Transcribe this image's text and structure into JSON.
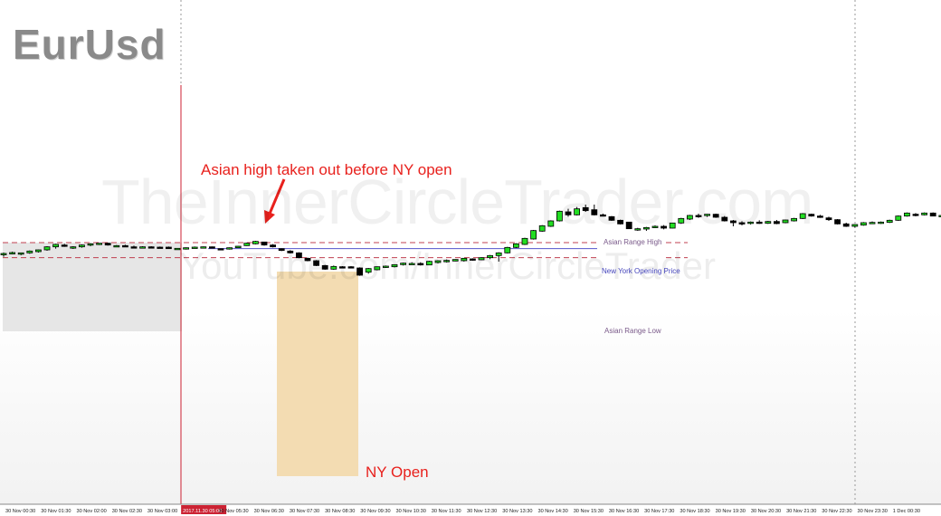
{
  "symbol_title": "EurUsd",
  "watermark": {
    "line1": "TheInnerCircleTrader.com",
    "line2": "YouTube.com/InnerCircleTrader"
  },
  "annotations": {
    "asian_high_note": "Asian high taken out before NY open",
    "ny_open_note": "NY Open"
  },
  "colors": {
    "bull_candle": "#22dd22",
    "bear_candle": "#000000",
    "asian_range_line": "#c04050",
    "ny_open_line": "#5555cc",
    "asian_session_box": "#e6e6e6",
    "ny_open_box": "#f3dcb2",
    "annotation_text": "#e8211d",
    "separator_line": "#cc2233"
  },
  "chart_data": {
    "type": "candlestick",
    "title": "EurUsd",
    "levels": [
      {
        "name": "Asian Range High",
        "value": 1.1918
      },
      {
        "name": "New York Opening Price",
        "value": 1.1898
      },
      {
        "name": "Asian Range Low",
        "value": 1.1868
      }
    ],
    "x_tick_labels": [
      "30 Nov 00:30",
      "30 Nov 01:30",
      "30 Nov 02:00",
      "30 Nov 02:30",
      "30 Nov 03:00",
      "2017.11.30 05:00",
      "30 Nov 05:30",
      "30 Nov 06:30",
      "30 Nov 07:30",
      "30 Nov 08:30",
      "30 Nov 09:30",
      "30 Nov 10:30",
      "30 Nov 11:30",
      "30 Nov 12:30",
      "30 Nov 13:30",
      "30 Nov 14:30",
      "30 Nov 15:30",
      "30 Nov 16:30",
      "30 Nov 17:30",
      "30 Nov 18:30",
      "30 Nov 19:30",
      "30 Nov 20:30",
      "30 Nov 21:30",
      "30 Nov 22:30",
      "30 Nov 23:30",
      "1 Dec 00:30"
    ],
    "highlighted_tick": "2017.11.30 05:00",
    "ohlc": [
      [
        1.1878,
        1.1885,
        1.1871,
        1.1882
      ],
      [
        1.1882,
        1.1888,
        1.1879,
        1.1885
      ],
      [
        1.188,
        1.1885,
        1.1876,
        1.1884
      ],
      [
        1.1884,
        1.1892,
        1.1881,
        1.189
      ],
      [
        1.1888,
        1.1895,
        1.1885,
        1.1894
      ],
      [
        1.1894,
        1.1906,
        1.1891,
        1.1904
      ],
      [
        1.1904,
        1.1914,
        1.1898,
        1.1912
      ],
      [
        1.191,
        1.1914,
        1.1904,
        1.1906
      ],
      [
        1.1902,
        1.1906,
        1.1897,
        1.1904
      ],
      [
        1.1904,
        1.1912,
        1.1901,
        1.191
      ],
      [
        1.191,
        1.1916,
        1.1906,
        1.1914
      ],
      [
        1.1912,
        1.1916,
        1.191,
        1.1916
      ],
      [
        1.1916,
        1.1918,
        1.1908,
        1.191
      ],
      [
        1.1908,
        1.191,
        1.1905,
        1.1908
      ],
      [
        1.1908,
        1.1911,
        1.1903,
        1.1906
      ],
      [
        1.1904,
        1.1908,
        1.19,
        1.1902
      ],
      [
        1.1902,
        1.1906,
        1.1899,
        1.1904
      ],
      [
        1.1904,
        1.1906,
        1.1901,
        1.1903
      ],
      [
        1.1903,
        1.1905,
        1.1899,
        1.1902
      ],
      [
        1.1903,
        1.1905,
        1.1898,
        1.1898
      ],
      [
        1.1898,
        1.19,
        1.1896,
        1.1899
      ],
      [
        1.1897,
        1.1902,
        1.1895,
        1.1901
      ],
      [
        1.1901,
        1.1905,
        1.19,
        1.1903
      ],
      [
        1.1903,
        1.1905,
        1.1901,
        1.1904
      ],
      [
        1.1904,
        1.1905,
        1.19,
        1.1902
      ],
      [
        1.1898,
        1.1899,
        1.1893,
        1.1895
      ],
      [
        1.1898,
        1.1902,
        1.1895,
        1.1901
      ],
      [
        1.1901,
        1.1907,
        1.19,
        1.1906
      ],
      [
        1.1908,
        1.1918,
        1.1907,
        1.1916
      ],
      [
        1.1914,
        1.1924,
        1.1912,
        1.1922
      ],
      [
        1.192,
        1.1921,
        1.1908,
        1.191
      ],
      [
        1.191,
        1.1913,
        1.1902,
        1.1904
      ],
      [
        1.1898,
        1.1899,
        1.189,
        1.1892
      ],
      [
        1.189,
        1.1893,
        1.1882,
        1.1884
      ],
      [
        1.1884,
        1.1886,
        1.1866,
        1.1868
      ],
      [
        1.1866,
        1.1868,
        1.1856,
        1.1858
      ],
      [
        1.1858,
        1.186,
        1.184,
        1.1842
      ],
      [
        1.1842,
        1.1844,
        1.1828,
        1.183
      ],
      [
        1.183,
        1.1842,
        1.1828,
        1.1839
      ],
      [
        1.1838,
        1.184,
        1.1835,
        1.1837
      ],
      [
        1.1838,
        1.184,
        1.1834,
        1.1836
      ],
      [
        1.1834,
        1.1836,
        1.1808,
        1.181
      ],
      [
        1.182,
        1.1834,
        1.1815,
        1.1832
      ],
      [
        1.1828,
        1.1839,
        1.1826,
        1.1838
      ],
      [
        1.1836,
        1.1842,
        1.1834,
        1.184
      ],
      [
        1.1838,
        1.1846,
        1.1836,
        1.1845
      ],
      [
        1.1845,
        1.1852,
        1.1842,
        1.185
      ],
      [
        1.1848,
        1.1853,
        1.1845,
        1.1849
      ],
      [
        1.1849,
        1.1853,
        1.1842,
        1.1844
      ],
      [
        1.1844,
        1.1858,
        1.1843,
        1.1856
      ],
      [
        1.1852,
        1.186,
        1.1849,
        1.1858
      ],
      [
        1.1856,
        1.1862,
        1.1852,
        1.1859
      ],
      [
        1.1857,
        1.1863,
        1.1856,
        1.1862
      ],
      [
        1.1858,
        1.1867,
        1.1855,
        1.1866
      ],
      [
        1.1864,
        1.1866,
        1.1858,
        1.186
      ],
      [
        1.1861,
        1.187,
        1.186,
        1.1868
      ],
      [
        1.1868,
        1.1877,
        1.1863,
        1.1875
      ],
      [
        1.1875,
        1.1886,
        1.1855,
        1.1884
      ],
      [
        1.1884,
        1.1904,
        1.1882,
        1.1902
      ],
      [
        1.1902,
        1.1916,
        1.19,
        1.1914
      ],
      [
        1.1912,
        1.1934,
        1.191,
        1.1932
      ],
      [
        1.193,
        1.196,
        1.1928,
        1.1958
      ],
      [
        1.1956,
        1.1976,
        1.1954,
        1.1974
      ],
      [
        1.1972,
        1.1992,
        1.197,
        1.199
      ],
      [
        1.199,
        1.2024,
        1.1988,
        1.2022
      ],
      [
        1.202,
        1.203,
        1.2004,
        1.201
      ],
      [
        1.201,
        1.2036,
        1.2008,
        1.203
      ],
      [
        1.2034,
        1.2044,
        1.202,
        1.2024
      ],
      [
        1.2027,
        1.2044,
        1.2008,
        1.201
      ],
      [
        1.201,
        1.2014,
        1.2006,
        1.2008
      ],
      [
        1.2004,
        1.2006,
        1.199,
        1.1992
      ],
      [
        1.1992,
        1.1994,
        1.1978,
        1.198
      ],
      [
        1.1986,
        1.1987,
        1.1963,
        1.1964
      ],
      [
        1.1964,
        1.1967,
        1.1957,
        1.1964
      ],
      [
        1.1963,
        1.197,
        1.1957,
        1.1968
      ],
      [
        1.1968,
        1.1975,
        1.1966,
        1.1972
      ],
      [
        1.1972,
        1.1976,
        1.1962,
        1.1966
      ],
      [
        1.1966,
        1.1984,
        1.1965,
        1.1983
      ],
      [
        1.1983,
        1.2,
        1.198,
        1.1998
      ],
      [
        1.1996,
        1.201,
        1.1993,
        1.2008
      ],
      [
        1.2008,
        1.2014,
        1.2,
        1.2006
      ],
      [
        1.201,
        1.2013,
        1.2003,
        1.2012
      ],
      [
        1.2012,
        1.2014,
        1.2,
        1.2002
      ],
      [
        1.2002,
        1.2006,
        1.1988,
        1.199
      ],
      [
        1.199,
        1.1993,
        1.1972,
        1.1984
      ],
      [
        1.1984,
        1.1989,
        1.1975,
        1.198
      ],
      [
        1.1982,
        1.1988,
        1.1978,
        1.1986
      ],
      [
        1.1986,
        1.1992,
        1.198,
        1.1982
      ],
      [
        1.1982,
        1.199,
        1.198,
        1.1988
      ],
      [
        1.1988,
        1.1993,
        1.1979,
        1.1981
      ],
      [
        1.1984,
        1.1994,
        1.1982,
        1.1993
      ],
      [
        1.199,
        1.2,
        1.1988,
        1.1998
      ],
      [
        1.1998,
        1.2016,
        1.1996,
        1.2014
      ],
      [
        1.2012,
        1.2014,
        1.2004,
        1.2006
      ],
      [
        1.2006,
        1.201,
        1.2,
        1.2002
      ],
      [
        1.2,
        1.2004,
        1.199,
        1.1994
      ],
      [
        1.1994,
        1.1996,
        1.1978,
        1.198
      ],
      [
        1.198,
        1.1984,
        1.197,
        1.1972
      ],
      [
        1.1972,
        1.1979,
        1.1968,
        1.1978
      ],
      [
        1.1976,
        1.1986,
        1.1974,
        1.1984
      ],
      [
        1.1984,
        1.1988,
        1.198,
        1.1985
      ],
      [
        1.1983,
        1.1988,
        1.198,
        1.1986
      ],
      [
        1.1985,
        1.1994,
        1.1983,
        1.1992
      ],
      [
        1.1992,
        1.2008,
        1.199,
        1.2006
      ],
      [
        1.2006,
        1.2018,
        1.2004,
        1.2016
      ],
      [
        1.2012,
        1.2016,
        1.2005,
        1.201
      ],
      [
        1.201,
        1.2018,
        1.2008,
        1.2016
      ],
      [
        1.2016,
        1.2018,
        1.2005,
        1.2006
      ],
      [
        1.2006,
        1.201,
        1.1998,
        1.2008
      ],
      [
        1.2008,
        1.2014,
        1.2006,
        1.2012
      ]
    ]
  }
}
